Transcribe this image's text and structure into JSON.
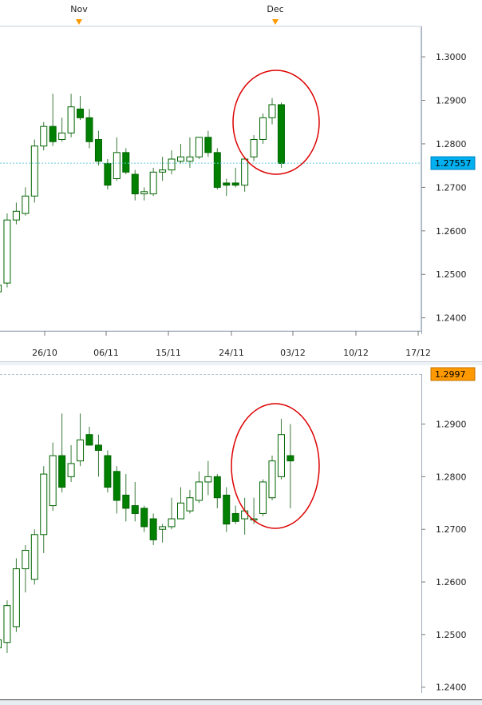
{
  "colors": {
    "bull_fill": "#ffffff",
    "bear_fill": "#008000",
    "candle_stroke": "#006400",
    "wick": "#3a7a3a",
    "grid": "#a8b8c8",
    "current_price_line": "#66ccdd",
    "current_price_badge": "#00b0f0",
    "last_price_badge": "#ff9900",
    "circle": "#dd0000",
    "month_marker": "#ff9900"
  },
  "chart_data": [
    {
      "type": "candlestick",
      "x_labels": [
        "26/10",
        "06/11",
        "15/11",
        "24/11",
        "03/12",
        "10/12",
        "17/12"
      ],
      "month_markers": [
        "Nov",
        "Dec"
      ],
      "y_ticks": [
        "1.3000",
        "1.2900",
        "1.2800",
        "1.2700",
        "1.2600",
        "1.2500",
        "1.2400"
      ],
      "ylim": [
        1.237,
        1.307
      ],
      "current_price": "1.27557",
      "grid": true,
      "annotation": "circle around last two candles",
      "candles": [
        {
          "o": 1.246,
          "h": 1.251,
          "l": 1.245,
          "c": 1.2475
        },
        {
          "o": 1.248,
          "h": 1.264,
          "l": 1.247,
          "c": 1.2625
        },
        {
          "o": 1.2625,
          "h": 1.2665,
          "l": 1.2615,
          "c": 1.2645
        },
        {
          "o": 1.264,
          "h": 1.27,
          "l": 1.2635,
          "c": 1.268
        },
        {
          "o": 1.268,
          "h": 1.281,
          "l": 1.2665,
          "c": 1.2795
        },
        {
          "o": 1.2795,
          "h": 1.285,
          "l": 1.2785,
          "c": 1.284
        },
        {
          "o": 1.284,
          "h": 1.2915,
          "l": 1.2795,
          "c": 1.2805
        },
        {
          "o": 1.281,
          "h": 1.286,
          "l": 1.2805,
          "c": 1.2825
        },
        {
          "o": 1.2825,
          "h": 1.2915,
          "l": 1.2815,
          "c": 1.2885
        },
        {
          "o": 1.288,
          "h": 1.291,
          "l": 1.2855,
          "c": 1.286
        },
        {
          "o": 1.286,
          "h": 1.288,
          "l": 1.279,
          "c": 1.2805
        },
        {
          "o": 1.281,
          "h": 1.283,
          "l": 1.275,
          "c": 1.276
        },
        {
          "o": 1.2755,
          "h": 1.2765,
          "l": 1.2695,
          "c": 1.2705
        },
        {
          "o": 1.272,
          "h": 1.2815,
          "l": 1.2715,
          "c": 1.278
        },
        {
          "o": 1.278,
          "h": 1.279,
          "l": 1.273,
          "c": 1.2735
        },
        {
          "o": 1.273,
          "h": 1.274,
          "l": 1.267,
          "c": 1.2685
        },
        {
          "o": 1.2685,
          "h": 1.27,
          "l": 1.267,
          "c": 1.269
        },
        {
          "o": 1.2685,
          "h": 1.2745,
          "l": 1.268,
          "c": 1.2735
        },
        {
          "o": 1.2735,
          "h": 1.277,
          "l": 1.2715,
          "c": 1.274
        },
        {
          "o": 1.274,
          "h": 1.2785,
          "l": 1.273,
          "c": 1.2765
        },
        {
          "o": 1.276,
          "h": 1.28,
          "l": 1.2755,
          "c": 1.277
        },
        {
          "o": 1.276,
          "h": 1.2815,
          "l": 1.2745,
          "c": 1.277
        },
        {
          "o": 1.277,
          "h": 1.2815,
          "l": 1.2765,
          "c": 1.2815
        },
        {
          "o": 1.2815,
          "h": 1.283,
          "l": 1.277,
          "c": 1.278
        },
        {
          "o": 1.278,
          "h": 1.279,
          "l": 1.2695,
          "c": 1.27
        },
        {
          "o": 1.271,
          "h": 1.272,
          "l": 1.268,
          "c": 1.2705
        },
        {
          "o": 1.271,
          "h": 1.2745,
          "l": 1.27,
          "c": 1.2705
        },
        {
          "o": 1.2705,
          "h": 1.277,
          "l": 1.269,
          "c": 1.2765
        },
        {
          "o": 1.277,
          "h": 1.282,
          "l": 1.276,
          "c": 1.281
        },
        {
          "o": 1.281,
          "h": 1.287,
          "l": 1.28,
          "c": 1.286
        },
        {
          "o": 1.286,
          "h": 1.2905,
          "l": 1.2845,
          "c": 1.289
        },
        {
          "o": 1.289,
          "h": 1.2895,
          "l": 1.2745,
          "c": 1.2755
        }
      ]
    },
    {
      "type": "candlestick",
      "y_ticks": [
        "1.2900",
        "1.2800",
        "1.2700",
        "1.2600",
        "1.2500",
        "1.2400"
      ],
      "ylim": [
        1.2395,
        1.2995
      ],
      "last_price": "1.2997",
      "grid": true,
      "annotation": "circle around last two candles",
      "candles": [
        {
          "o": 1.2475,
          "h": 1.2505,
          "l": 1.2455,
          "c": 1.249
        },
        {
          "o": 1.2485,
          "h": 1.2565,
          "l": 1.2465,
          "c": 1.2555
        },
        {
          "o": 1.2515,
          "h": 1.2645,
          "l": 1.2505,
          "c": 1.2625
        },
        {
          "o": 1.2625,
          "h": 1.267,
          "l": 1.258,
          "c": 1.266
        },
        {
          "o": 1.2605,
          "h": 1.27,
          "l": 1.2595,
          "c": 1.269
        },
        {
          "o": 1.269,
          "h": 1.282,
          "l": 1.2655,
          "c": 1.2805
        },
        {
          "o": 1.2745,
          "h": 1.2865,
          "l": 1.2735,
          "c": 1.284
        },
        {
          "o": 1.284,
          "h": 1.292,
          "l": 1.277,
          "c": 1.278
        },
        {
          "o": 1.28,
          "h": 1.286,
          "l": 1.279,
          "c": 1.2825
        },
        {
          "o": 1.283,
          "h": 1.292,
          "l": 1.282,
          "c": 1.287
        },
        {
          "o": 1.288,
          "h": 1.2895,
          "l": 1.286,
          "c": 1.286
        },
        {
          "o": 1.286,
          "h": 1.288,
          "l": 1.28,
          "c": 1.285
        },
        {
          "o": 1.284,
          "h": 1.285,
          "l": 1.277,
          "c": 1.278
        },
        {
          "o": 1.281,
          "h": 1.282,
          "l": 1.273,
          "c": 1.2755
        },
        {
          "o": 1.2765,
          "h": 1.2805,
          "l": 1.2715,
          "c": 1.274
        },
        {
          "o": 1.2745,
          "h": 1.279,
          "l": 1.2715,
          "c": 1.273
        },
        {
          "o": 1.274,
          "h": 1.2745,
          "l": 1.2695,
          "c": 1.2705
        },
        {
          "o": 1.272,
          "h": 1.273,
          "l": 1.267,
          "c": 1.268
        },
        {
          "o": 1.27,
          "h": 1.271,
          "l": 1.2675,
          "c": 1.2705
        },
        {
          "o": 1.2705,
          "h": 1.276,
          "l": 1.27,
          "c": 1.272
        },
        {
          "o": 1.272,
          "h": 1.278,
          "l": 1.272,
          "c": 1.275
        },
        {
          "o": 1.2735,
          "h": 1.2775,
          "l": 1.273,
          "c": 1.276
        },
        {
          "o": 1.2755,
          "h": 1.281,
          "l": 1.275,
          "c": 1.279
        },
        {
          "o": 1.279,
          "h": 1.283,
          "l": 1.2765,
          "c": 1.28
        },
        {
          "o": 1.28,
          "h": 1.2805,
          "l": 1.274,
          "c": 1.276
        },
        {
          "o": 1.2765,
          "h": 1.278,
          "l": 1.2695,
          "c": 1.271
        },
        {
          "o": 1.273,
          "h": 1.2745,
          "l": 1.271,
          "c": 1.2715
        },
        {
          "o": 1.272,
          "h": 1.276,
          "l": 1.269,
          "c": 1.2735
        },
        {
          "o": 1.272,
          "h": 1.276,
          "l": 1.271,
          "c": 1.272
        },
        {
          "o": 1.273,
          "h": 1.2795,
          "l": 1.2725,
          "c": 1.279
        },
        {
          "o": 1.276,
          "h": 1.284,
          "l": 1.2755,
          "c": 1.283
        },
        {
          "o": 1.28,
          "h": 1.291,
          "l": 1.2795,
          "c": 1.288
        },
        {
          "o": 1.284,
          "h": 1.29,
          "l": 1.274,
          "c": 1.283
        }
      ]
    }
  ]
}
